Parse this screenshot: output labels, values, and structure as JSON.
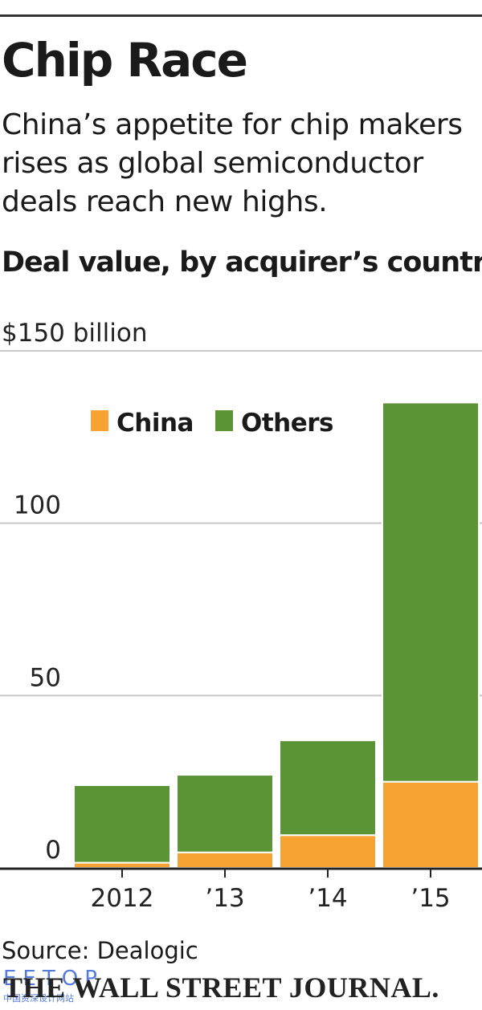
{
  "header": {
    "title": "Chip Race",
    "subtitle": "China’s appetite for chip makers rises as global semiconductor deals reach new highs."
  },
  "footer": {
    "source": "Source: Dealogic",
    "publisher": "THE WALL STREET JOURNAL.",
    "watermark": "EETOP",
    "watermark_sub": "中国资深设计网站"
  },
  "colors": {
    "china": "#f7a333",
    "others": "#5b9435",
    "gridline": "#c8c8c8",
    "axis": "#222222"
  },
  "chart_data": {
    "type": "bar",
    "stacked": true,
    "title": "Deal value, by acquirer’s country",
    "ylabel": "",
    "xlabel": "",
    "categories": [
      "2012",
      "’13",
      "’14",
      "’15"
    ],
    "series": [
      {
        "name": "China",
        "values": [
          1.5,
          4.5,
          9.5,
          25
        ]
      },
      {
        "name": "Others",
        "values": [
          22.5,
          22.5,
          27.5,
          110
        ]
      }
    ],
    "ylim": [
      0,
      150
    ],
    "yticks": [
      0,
      50,
      100,
      150
    ],
    "ytick_labels": [
      "0",
      "50",
      "100",
      "$150 billion"
    ],
    "grid": true,
    "legend": "top-center"
  }
}
